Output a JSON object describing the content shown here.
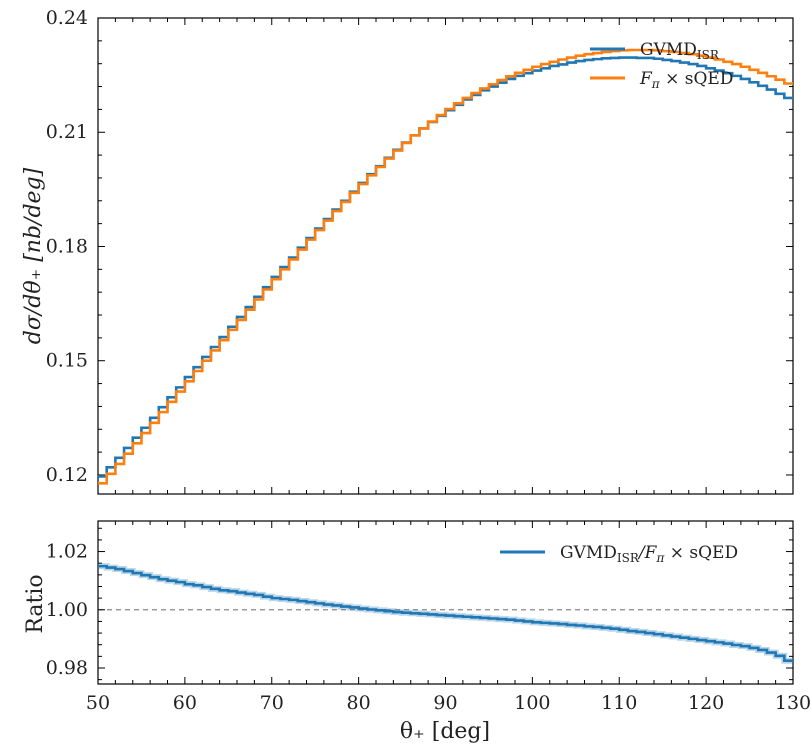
{
  "chart_data": [
    {
      "type": "line",
      "step": true,
      "xlim": [
        50,
        130
      ],
      "ylim": [
        0.115,
        0.24
      ],
      "xticks": [
        50,
        60,
        70,
        80,
        90,
        100,
        110,
        120,
        130
      ],
      "yticks": [
        0.12,
        0.15,
        0.18,
        0.21,
        0.24
      ],
      "ytick_labels": [
        "0.12",
        "0.15",
        "0.18",
        "0.21",
        "0.24"
      ],
      "ylabel": "dσ/dθ₊ [nb/deg]",
      "legend": "top-right",
      "bin_edges": [
        50,
        51,
        52,
        53,
        54,
        55,
        56,
        57,
        58,
        59,
        60,
        61,
        62,
        63,
        64,
        65,
        66,
        67,
        68,
        69,
        70,
        71,
        72,
        73,
        74,
        75,
        76,
        77,
        78,
        79,
        80,
        81,
        82,
        83,
        84,
        85,
        86,
        87,
        88,
        89,
        90,
        91,
        92,
        93,
        94,
        95,
        96,
        97,
        98,
        99,
        100,
        101,
        102,
        103,
        104,
        105,
        106,
        107,
        108,
        109,
        110,
        111,
        112,
        113,
        114,
        115,
        116,
        117,
        118,
        119,
        120,
        121,
        122,
        123,
        124,
        125,
        126,
        127,
        128,
        129,
        130
      ],
      "series": [
        {
          "name": "GVMD",
          "name_sub": "ISR",
          "color": "#1f77b4",
          "values": [
            0.1196,
            0.122,
            0.1245,
            0.1271,
            0.1298,
            0.1324,
            0.135,
            0.1378,
            0.1404,
            0.143,
            0.1457,
            0.1483,
            0.151,
            0.1536,
            0.1562,
            0.1589,
            0.1615,
            0.1641,
            0.1668,
            0.1693,
            0.172,
            0.1746,
            0.1771,
            0.1797,
            0.1822,
            0.1847,
            0.1872,
            0.1897,
            0.192,
            0.1944,
            0.1967,
            0.199,
            0.2011,
            0.2033,
            0.2054,
            0.2073,
            0.2092,
            0.211,
            0.2127,
            0.2143,
            0.2158,
            0.2172,
            0.2186,
            0.2198,
            0.221,
            0.222,
            0.223,
            0.224,
            0.2248,
            0.2255,
            0.2262,
            0.2268,
            0.2274,
            0.2278,
            0.2283,
            0.2287,
            0.229,
            0.2292,
            0.2294,
            0.2295,
            0.2296,
            0.2296,
            0.2295,
            0.2295,
            0.2293,
            0.229,
            0.2287,
            0.2283,
            0.2279,
            0.2274,
            0.2268,
            0.2262,
            0.2255,
            0.2248,
            0.224,
            0.2231,
            0.2222,
            0.2212,
            0.2201,
            0.219
          ]
        },
        {
          "name": "F",
          "name_sub": "π",
          "name_suffix": " × sQED",
          "color": "#ff7f0e",
          "values": [
            0.1178,
            0.1203,
            0.1229,
            0.1256,
            0.1283,
            0.131,
            0.1337,
            0.1365,
            0.1392,
            0.1419,
            0.1446,
            0.1473,
            0.15,
            0.1527,
            0.1554,
            0.1581,
            0.1607,
            0.1634,
            0.1661,
            0.1687,
            0.1714,
            0.174,
            0.1766,
            0.1792,
            0.1818,
            0.1843,
            0.1868,
            0.1893,
            0.1917,
            0.1941,
            0.1964,
            0.1987,
            0.2009,
            0.2031,
            0.2052,
            0.2072,
            0.2092,
            0.211,
            0.2128,
            0.2145,
            0.2161,
            0.2176,
            0.219,
            0.2203,
            0.2215,
            0.2226,
            0.2237,
            0.2247,
            0.2256,
            0.2264,
            0.2272,
            0.2279,
            0.2285,
            0.2291,
            0.2296,
            0.2301,
            0.2305,
            0.2308,
            0.2311,
            0.2313,
            0.2315,
            0.2316,
            0.2316,
            0.2316,
            0.2315,
            0.2313,
            0.2311,
            0.2308,
            0.2305,
            0.2301,
            0.2296,
            0.2291,
            0.2285,
            0.2279,
            0.2272,
            0.2264,
            0.2256,
            0.2247,
            0.2238,
            0.2228
          ]
        }
      ]
    },
    {
      "type": "line",
      "step": true,
      "xlim": [
        50,
        130
      ],
      "ylim": [
        0.9745,
        1.0305
      ],
      "xticks": [
        50,
        60,
        70,
        80,
        90,
        100,
        110,
        120,
        130
      ],
      "xtick_labels": [
        "50",
        "60",
        "70",
        "80",
        "90",
        "100",
        "110",
        "120",
        "130"
      ],
      "yticks": [
        0.98,
        1.0,
        1.02
      ],
      "ytick_labels": [
        "0.98",
        "1.00",
        "1.02"
      ],
      "xlabel": "θ₊ [deg]",
      "ylabel": "Ratio",
      "reference_line": 1.0,
      "legend": "top-right",
      "series": [
        {
          "name": "GVMD",
          "name_sub": "ISR",
          "name_mid": "/F",
          "name_sub2": "π",
          "name_suffix": " × sQED",
          "color": "#1f77b4",
          "values": [
            1.015,
            1.0145,
            1.014,
            1.0133,
            1.0126,
            1.0119,
            1.0112,
            1.0105,
            1.01,
            1.0095,
            1.0088,
            1.0084,
            1.0078,
            1.0072,
            1.0067,
            1.0064,
            1.0059,
            1.0055,
            1.0051,
            1.0045,
            1.004,
            1.0037,
            1.0034,
            1.003,
            1.0026,
            1.0022,
            1.0018,
            1.0015,
            1.0011,
            1.0008,
            1.0004,
            1.0001,
            0.9998,
            0.9995,
            0.9992,
            0.999,
            0.9988,
            0.9986,
            0.9984,
            0.9982,
            0.998,
            0.9978,
            0.9976,
            0.9974,
            0.9972,
            0.997,
            0.9968,
            0.9966,
            0.9963,
            0.996,
            0.9957,
            0.9955,
            0.9953,
            0.9951,
            0.9948,
            0.9946,
            0.9943,
            0.9941,
            0.9938,
            0.9935,
            0.9931,
            0.9927,
            0.9924,
            0.992,
            0.9916,
            0.9912,
            0.9908,
            0.9904,
            0.99,
            0.9896,
            0.9892,
            0.9888,
            0.9884,
            0.9879,
            0.9875,
            0.9869,
            0.9862,
            0.9853,
            0.9842,
            0.9825
          ]
        }
      ]
    }
  ]
}
